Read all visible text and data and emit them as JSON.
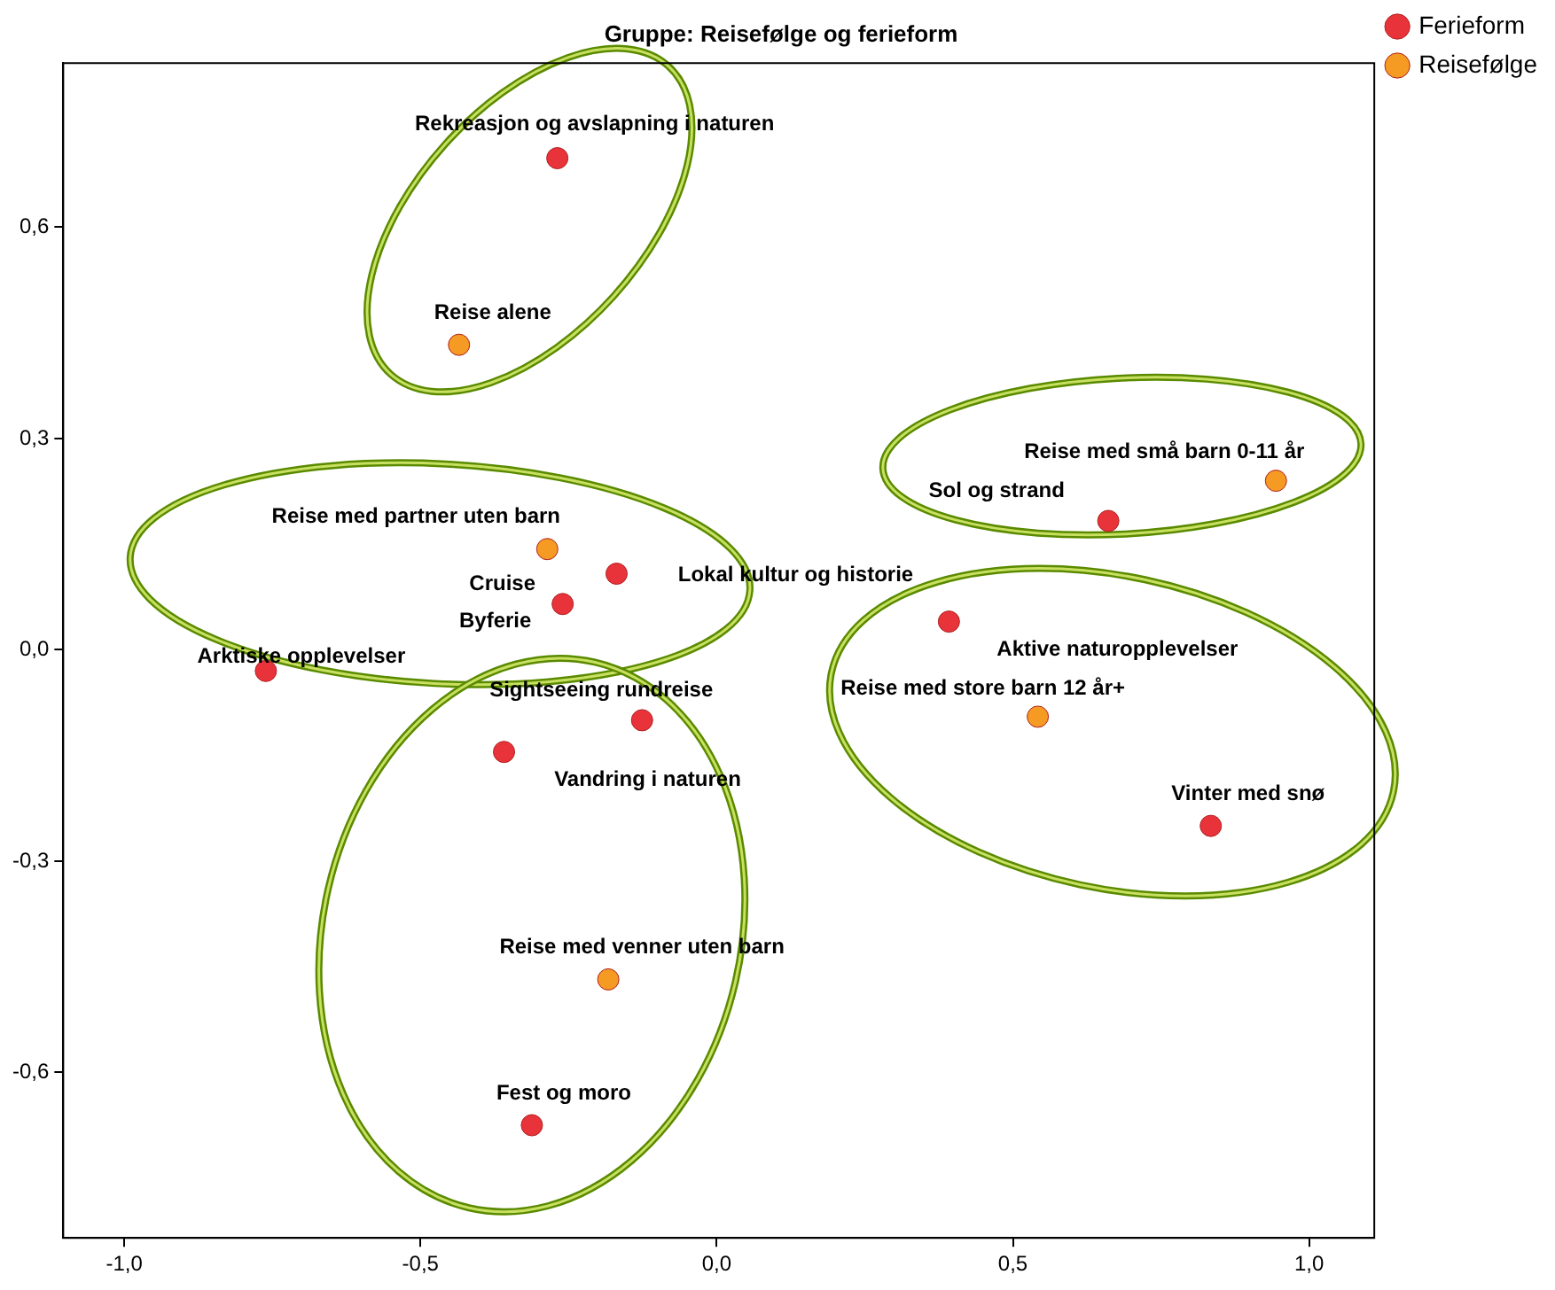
{
  "chart_data": {
    "type": "scatter",
    "title": "Gruppe: Reisefølge og ferieform",
    "series": [
      {
        "name": "Ferieform",
        "color": "#e8333a",
        "x": [
          -0.269,
          0.661,
          -0.169,
          null,
          -0.26,
          0.392,
          -0.761,
          -0.126,
          -0.359,
          0.834,
          -0.312
        ],
        "values": [
          0.698,
          0.183,
          0.108,
          null,
          0.065,
          0.04,
          -0.03,
          -0.1,
          -0.145,
          -0.25,
          -0.675
        ]
      },
      {
        "name": "Reisefølge",
        "color": "#f59a23",
        "x": [
          -0.435,
          0.944,
          -0.286,
          0.542,
          -0.183
        ],
        "values": [
          0.433,
          0.24,
          0.143,
          -0.095,
          -0.468
        ]
      }
    ],
    "xlim": [
      -1.103,
      1.11
    ],
    "ylim": [
      -0.835,
      0.833
    ],
    "xticks": [
      {
        "value": -1,
        "label": "-1,0"
      },
      {
        "value": -0.5,
        "label": "-0,5"
      },
      {
        "value": 0,
        "label": "0,0"
      },
      {
        "value": 0.5,
        "label": "0,5"
      },
      {
        "value": 1,
        "label": "1,0"
      }
    ],
    "yticks": [
      {
        "value": -0.6,
        "label": "-0,6"
      },
      {
        "value": -0.3,
        "label": "-0,3"
      },
      {
        "value": 0,
        "label": "0,0"
      },
      {
        "value": 0.3,
        "label": "0,3"
      },
      {
        "value": 0.6,
        "label": "0,6"
      }
    ],
    "grid": false,
    "legend": "top right",
    "marker": "circle",
    "annotations": [
      {
        "text": "Rekreasjon og avslapning i naturen",
        "x": -0.269,
        "y": 0.698
      },
      {
        "text": "Reise alene",
        "x": -0.435,
        "y": 0.433
      },
      {
        "text": "Reise med små barn 0-11 år",
        "x": 0.944,
        "y": 0.24
      },
      {
        "text": "Sol og strand",
        "x": 0.661,
        "y": 0.183
      },
      {
        "text": "Reise med partner uten barn",
        "x": -0.286,
        "y": 0.143
      },
      {
        "text": "Cruise",
        "x": -0.26,
        "y": 0.065
      },
      {
        "text": "Lokal kultur og historie",
        "x": -0.169,
        "y": 0.108
      },
      {
        "text": "Byferie",
        "x": -0.26,
        "y": 0.065
      },
      {
        "text": "Aktive naturopplevelser",
        "x": 0.392,
        "y": 0.04
      },
      {
        "text": "Arktiske opplevelser",
        "x": -0.761,
        "y": -0.03
      },
      {
        "text": "Sightseeing rundreise",
        "x": -0.126,
        "y": -0.1
      },
      {
        "text": "Reise med store barn 12 år+",
        "x": 0.542,
        "y": -0.095
      },
      {
        "text": "Vandring i naturen",
        "x": -0.359,
        "y": -0.145
      },
      {
        "text": "Vinter med snø",
        "x": 0.834,
        "y": -0.25
      },
      {
        "text": "Reise med venner uten barn",
        "x": -0.183,
        "y": -0.468
      },
      {
        "text": "Fest og moro",
        "x": -0.312,
        "y": -0.675
      }
    ]
  }
}
